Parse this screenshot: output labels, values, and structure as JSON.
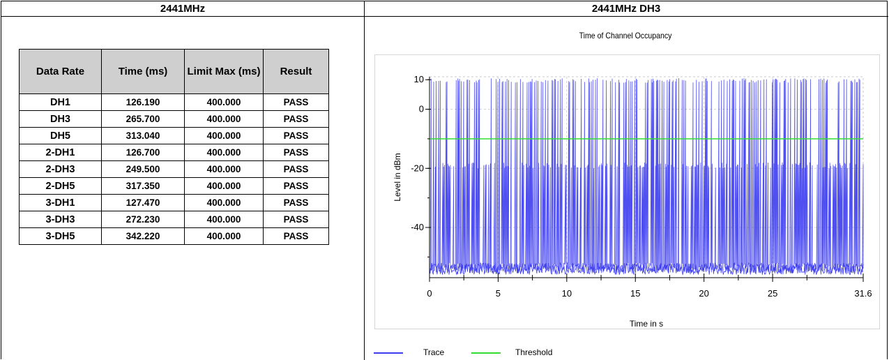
{
  "headers": {
    "left": "2441MHz",
    "right": "2441MHz DH3"
  },
  "table": {
    "columns": [
      "Data Rate",
      "Time (ms)",
      "Limit Max (ms)",
      "Result"
    ],
    "rows": [
      [
        "DH1",
        "126.190",
        "400.000",
        "PASS"
      ],
      [
        "DH3",
        "265.700",
        "400.000",
        "PASS"
      ],
      [
        "DH5",
        "313.040",
        "400.000",
        "PASS"
      ],
      [
        "2-DH1",
        "126.700",
        "400.000",
        "PASS"
      ],
      [
        "2-DH3",
        "249.500",
        "400.000",
        "PASS"
      ],
      [
        "2-DH5",
        "317.350",
        "400.000",
        "PASS"
      ],
      [
        "3-DH1",
        "127.470",
        "400.000",
        "PASS"
      ],
      [
        "3-DH3",
        "272.230",
        "400.000",
        "PASS"
      ],
      [
        "3-DH5",
        "342.220",
        "400.000",
        "PASS"
      ]
    ]
  },
  "chart_data": {
    "type": "line",
    "title": "Time of Channel Occupancy",
    "xlabel": "Time in s",
    "ylabel": "Level in dBm",
    "xlim": [
      0,
      31.6
    ],
    "ylim": [
      -57,
      11
    ],
    "x_ticks": [
      "0",
      "5",
      "10",
      "15",
      "20",
      "25",
      "31.6"
    ],
    "y_ticks": [
      "10",
      "0",
      "-20",
      "-40"
    ],
    "series": [
      {
        "name": "Trace",
        "color": "#3d3df0",
        "description_levels": {
          "noise_floor": -52,
          "low_burst": -18,
          "high_burst": 9
        }
      },
      {
        "name": "Threshold",
        "color": "#33dd33",
        "value": -10
      }
    ],
    "legend": "bottom-left",
    "grid": true
  }
}
